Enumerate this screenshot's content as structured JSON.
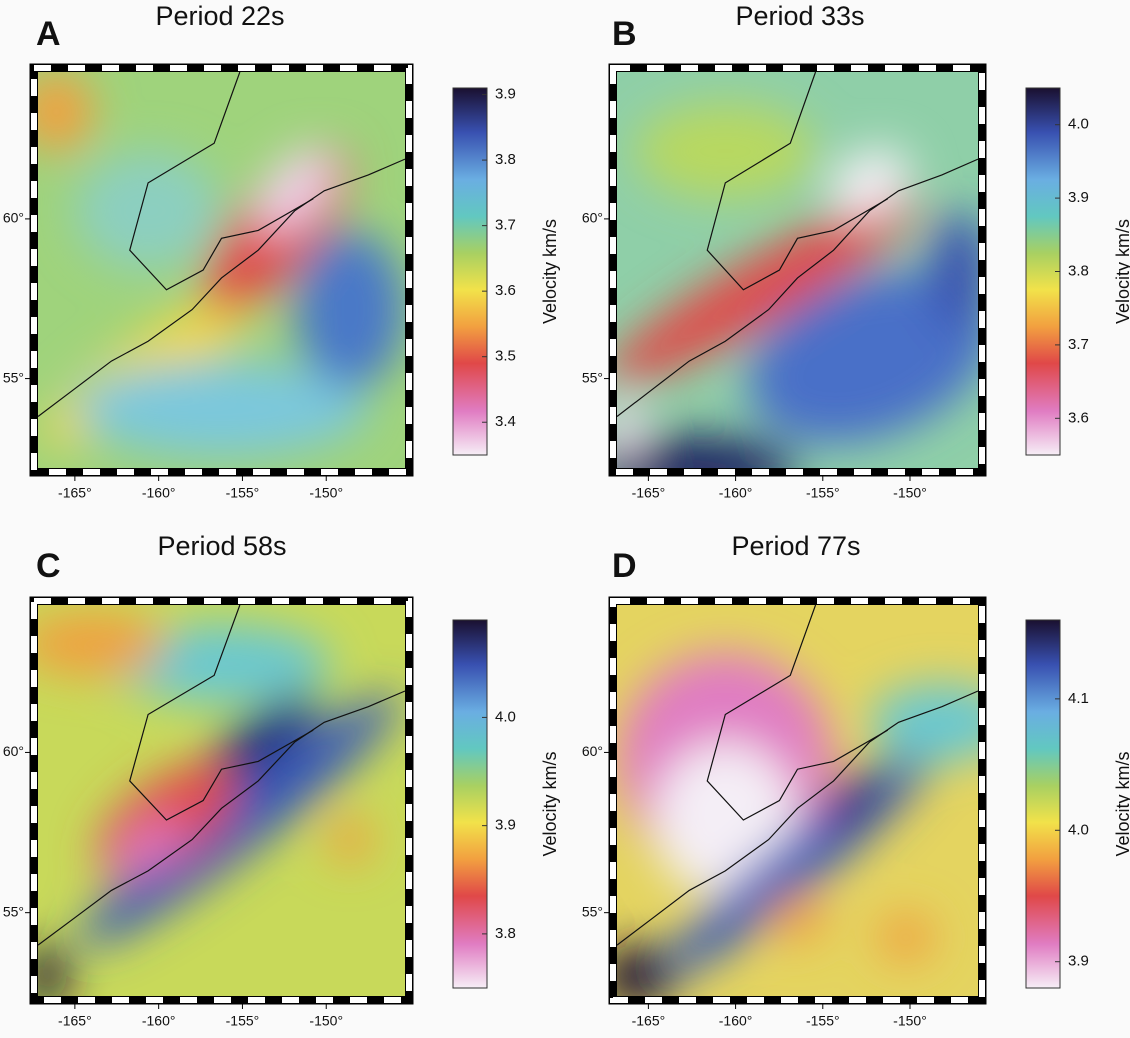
{
  "chart_data": [
    {
      "type": "map",
      "panel": "A",
      "title": "Period 22s",
      "xlim": [
        -167.2,
        -145.3
      ],
      "ylim": [
        52.2,
        64.6
      ],
      "xticks": [
        {
          "value": -165,
          "label": "-165°"
        },
        {
          "value": -160,
          "label": "-160°"
        },
        {
          "value": -155,
          "label": "-155°"
        },
        {
          "value": -150,
          "label": "-150°"
        }
      ],
      "yticks": [
        {
          "value": 55,
          "label": "55°"
        },
        {
          "value": 60,
          "label": "60°"
        }
      ],
      "colorbar": {
        "label": "Velocity km/s",
        "lim": [
          3.35,
          3.91
        ],
        "ticks": [
          3.4,
          3.5,
          3.6,
          3.7,
          3.8,
          3.9
        ]
      }
    },
    {
      "type": "map",
      "panel": "B",
      "title": "Period 33s",
      "xlim": [
        -166.8,
        -146.1
      ],
      "ylim": [
        52.2,
        64.6
      ],
      "xticks": [
        {
          "value": -165,
          "label": "-165°"
        },
        {
          "value": -160,
          "label": "-160°"
        },
        {
          "value": -155,
          "label": "-155°"
        },
        {
          "value": -150,
          "label": "-150°"
        }
      ],
      "yticks": [
        {
          "value": 55,
          "label": "55°"
        },
        {
          "value": 60,
          "label": "60°"
        }
      ],
      "colorbar": {
        "label": "Velocity km/s",
        "lim": [
          3.55,
          4.05
        ],
        "ticks": [
          3.6,
          3.7,
          3.8,
          3.9,
          {
            "value": 4,
            "label": "4.0"
          }
        ]
      }
    },
    {
      "type": "map",
      "panel": "C",
      "title": "Period 58s",
      "xlim": [
        -167.2,
        -145.3
      ],
      "ylim": [
        52.4,
        64.6
      ],
      "xticks": [
        {
          "value": -165,
          "label": "-165°"
        },
        {
          "value": -160,
          "label": "-160°"
        },
        {
          "value": -155,
          "label": "-155°"
        },
        {
          "value": -150,
          "label": "-150°"
        }
      ],
      "yticks": [
        {
          "value": 55,
          "label": "55°"
        },
        {
          "value": 60,
          "label": "60°"
        }
      ],
      "colorbar": {
        "label": "Velocity km/s",
        "lim": [
          3.75,
          4.09
        ],
        "ticks": [
          3.8,
          3.9,
          {
            "value": 4,
            "label": "4.0"
          }
        ]
      }
    },
    {
      "type": "map",
      "panel": "D",
      "title": "Period 77s",
      "xlim": [
        -166.8,
        -146.1
      ],
      "ylim": [
        52.4,
        64.6
      ],
      "xticks": [
        {
          "value": -165,
          "label": "-165°"
        },
        {
          "value": -160,
          "label": "-160°"
        },
        {
          "value": -155,
          "label": "-155°"
        },
        {
          "value": -150,
          "label": "-150°"
        }
      ],
      "yticks": [
        {
          "value": 55,
          "label": "55°"
        },
        {
          "value": 60,
          "label": "60°"
        }
      ],
      "colorbar": {
        "label": "Velocity km/s",
        "lim": [
          3.88,
          4.16
        ],
        "ticks": [
          3.9,
          {
            "value": 4,
            "label": "4.0"
          },
          4.1
        ]
      }
    }
  ]
}
